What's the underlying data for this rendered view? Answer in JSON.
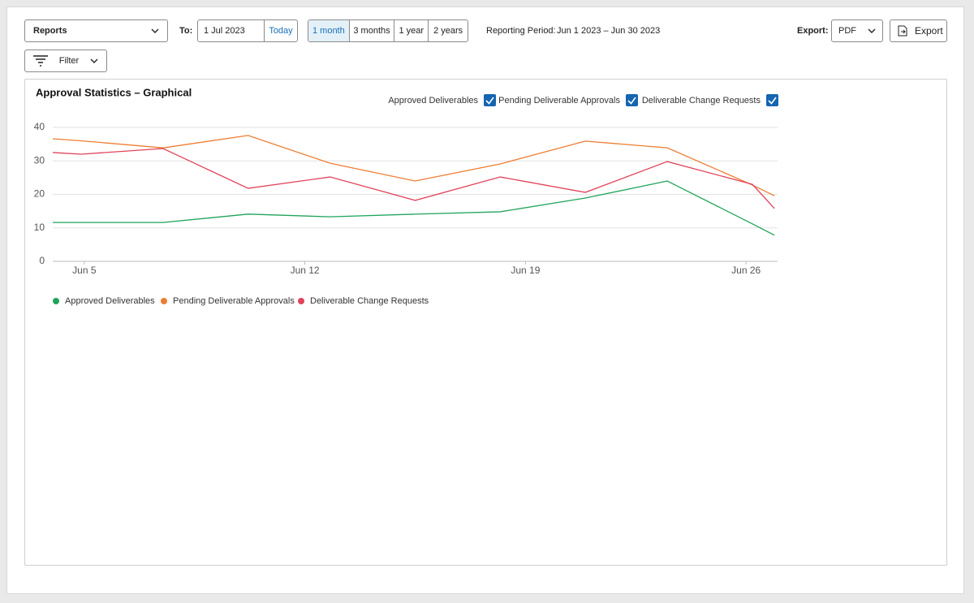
{
  "toolbar": {
    "report_select": "Reports",
    "to_label": "To:",
    "to_date": "1 Jul 2023",
    "today": "Today",
    "ranges": [
      "1 month",
      "3 months",
      "1 year",
      "2 years"
    ],
    "period_label": "Reporting Period:",
    "period_value": "Jun 1 2023 – Jun 30 2023",
    "export_label": "Export:",
    "export_format": "PDF",
    "export_button": "Export",
    "filter": "Filter"
  },
  "chart_data": {
    "type": "line",
    "title": "Approval Statistics – Graphical",
    "x": [
      4,
      4.9,
      7.5,
      10.2,
      12.8,
      15.5,
      18.2,
      20.9,
      23.5,
      26.2,
      26.9
    ],
    "series": [
      {
        "name": "Approved Deliverables",
        "color": "#1fa45a",
        "values": [
          11.6,
          11.6,
          11.6,
          14.1,
          13.3,
          14.1,
          14.8,
          18.9,
          24,
          11.2,
          7.8
        ]
      },
      {
        "name": "Pending Deliverable Approvals",
        "color": "#ee7d31",
        "values": [
          36.6,
          36,
          33.9,
          37.6,
          29.3,
          24,
          29.1,
          35.9,
          33.9,
          22.8,
          19.6
        ]
      },
      {
        "name": "Deliverable Change Requests",
        "color": "#e0435a",
        "values": [
          32.5,
          32,
          33.7,
          21.8,
          25.2,
          18.2,
          25.2,
          20.6,
          29.8,
          23,
          15.8
        ]
      }
    ],
    "xlim": [
      4,
      27
    ],
    "xticks": [
      {
        "value": 5,
        "label": "Jun 5"
      },
      {
        "value": 12,
        "label": "Jun 12"
      },
      {
        "value": 19,
        "label": "Jun 19"
      },
      {
        "value": 26,
        "label": "Jun 26"
      }
    ],
    "ylim": [
      0,
      40
    ],
    "yticks": [
      0,
      10,
      20,
      30,
      40
    ],
    "grid": true
  }
}
